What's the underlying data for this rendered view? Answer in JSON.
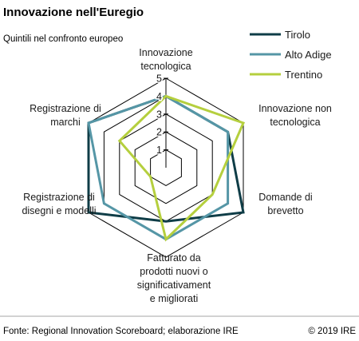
{
  "chart_data": {
    "type": "radar",
    "title": "Innovazione nell'Euregio",
    "subtitle": "Quintili nel confronto europeo",
    "axes": [
      [
        "Innovazione",
        "tecnologica"
      ],
      [
        "Innovazione non",
        "tecnologica"
      ],
      [
        "Domande di",
        "brevetto"
      ],
      [
        "Fatturato da",
        "prodotti nuovi o",
        "significativament",
        "e migliorati"
      ],
      [
        "Registrazione di",
        "disegni e modelli"
      ],
      [
        "Registrazione di",
        "marchi"
      ]
    ],
    "rlim": [
      0,
      5
    ],
    "ticks": [
      "1",
      "2",
      "3",
      "4",
      "5"
    ],
    "series": [
      {
        "name": "Tirolo",
        "color": "#0f3d47",
        "values": [
          4,
          4,
          5,
          3,
          5,
          5
        ]
      },
      {
        "name": "Alto Adige",
        "color": "#5596a6",
        "values": [
          4,
          4,
          4,
          4,
          4,
          5
        ]
      },
      {
        "name": "Trentino",
        "color": "#b5cf3e",
        "values": [
          4,
          5,
          3,
          4,
          1,
          3
        ]
      }
    ],
    "legend_position": "top-right",
    "grid": true
  },
  "footer": {
    "source": "Fonte: Regional Innovation Scoreboard; elaborazione IRE",
    "copyright": "© 2019 IRE"
  }
}
